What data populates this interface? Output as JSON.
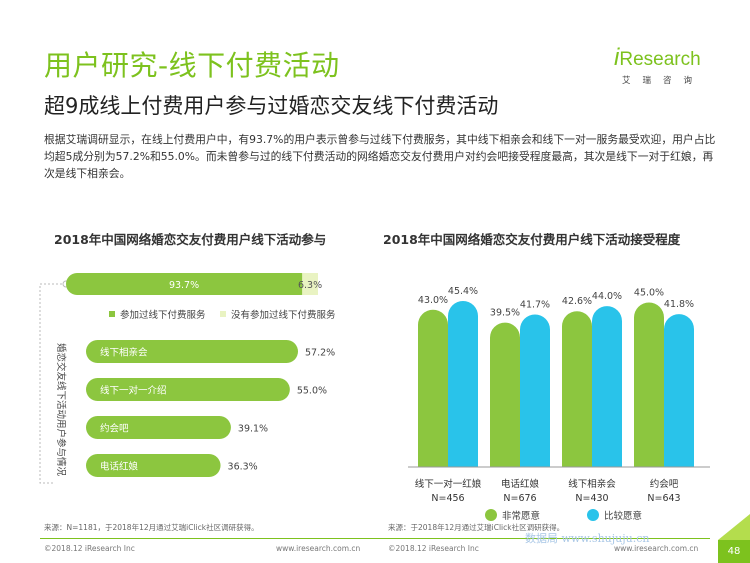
{
  "title": "用户研究-线下付费活动",
  "subtitle": "超9成线上付费用户参与过婚恋交友线下付费活动",
  "intro": "根据艾瑞调研显示，在线上付费用户中，有93.7%的用户表示曾参与过线下付费服务，其中线下相亲会和线下一对一服务最受欢迎，用户占比均超5成分别为57.2%和55.0%。而未曾参与过的线下付费活动的网络婚恋交友付费用户对约会吧接受程度最高，其次是线下一对于红娘，再次是线下相亲会。",
  "logo": {
    "mark": "i",
    "text": "Research",
    "sub": "艾瑞咨询"
  },
  "colors": {
    "green": "#8cc63f",
    "cyan": "#29c3ea",
    "pale": "#e9f3c2",
    "brand": "#7dc21e"
  },
  "chart_data": [
    {
      "type": "bar",
      "orientation": "horizontal",
      "title": "2018年中国网络婚恋交友付费用户线下活动参与",
      "ylabel": "婚恋交友线下活动用户参与情况",
      "top_split": {
        "series": [
          {
            "name": "参加过线下付费服务",
            "value": 93.7,
            "label": "93.7%"
          },
          {
            "name": "没有参加过线下付费服务",
            "value": 6.3,
            "label": "6.3%"
          }
        ]
      },
      "categories": [
        "线下相亲会",
        "线下一对一介绍",
        "约会吧",
        "电话红娘"
      ],
      "values": [
        57.2,
        55.0,
        39.1,
        36.3
      ],
      "labels": [
        "57.2%",
        "55.0%",
        "39.1%",
        "36.3%"
      ],
      "source": "来源：N=1181，于2018年12月通过艾瑞iClick社区调研获得。"
    },
    {
      "type": "bar",
      "title": "2018年中国网络婚恋交友付费用户线下活动接受程度",
      "categories": [
        "线下一对一红娘",
        "电话红娘",
        "线下相亲会",
        "约会吧"
      ],
      "category_notes": [
        "N=456",
        "N=676",
        "N=430",
        "N=643"
      ],
      "series": [
        {
          "name": "非常愿意",
          "values": [
            43.0,
            39.5,
            42.6,
            45.0
          ],
          "labels": [
            "43.0%",
            "39.5%",
            "42.6%",
            "45.0%"
          ]
        },
        {
          "name": "比较愿意",
          "values": [
            45.4,
            41.7,
            44.0,
            41.8
          ],
          "labels": [
            "45.4%",
            "41.7%",
            "44.0%",
            "41.8%"
          ]
        }
      ],
      "ylim": [
        0,
        50
      ],
      "source": "来源：于2018年12月通过艾瑞iClick社区调研获得。"
    }
  ],
  "footer": {
    "copyright_left": "©2018.12 iResearch Inc",
    "url_left": "www.iresearch.com.cn",
    "copyright_right": "©2018.12 iResearch Inc",
    "url_right": "www.iresearch.com.cn",
    "page_number": "48",
    "watermark": "数据局 www.shujuju.cn"
  }
}
